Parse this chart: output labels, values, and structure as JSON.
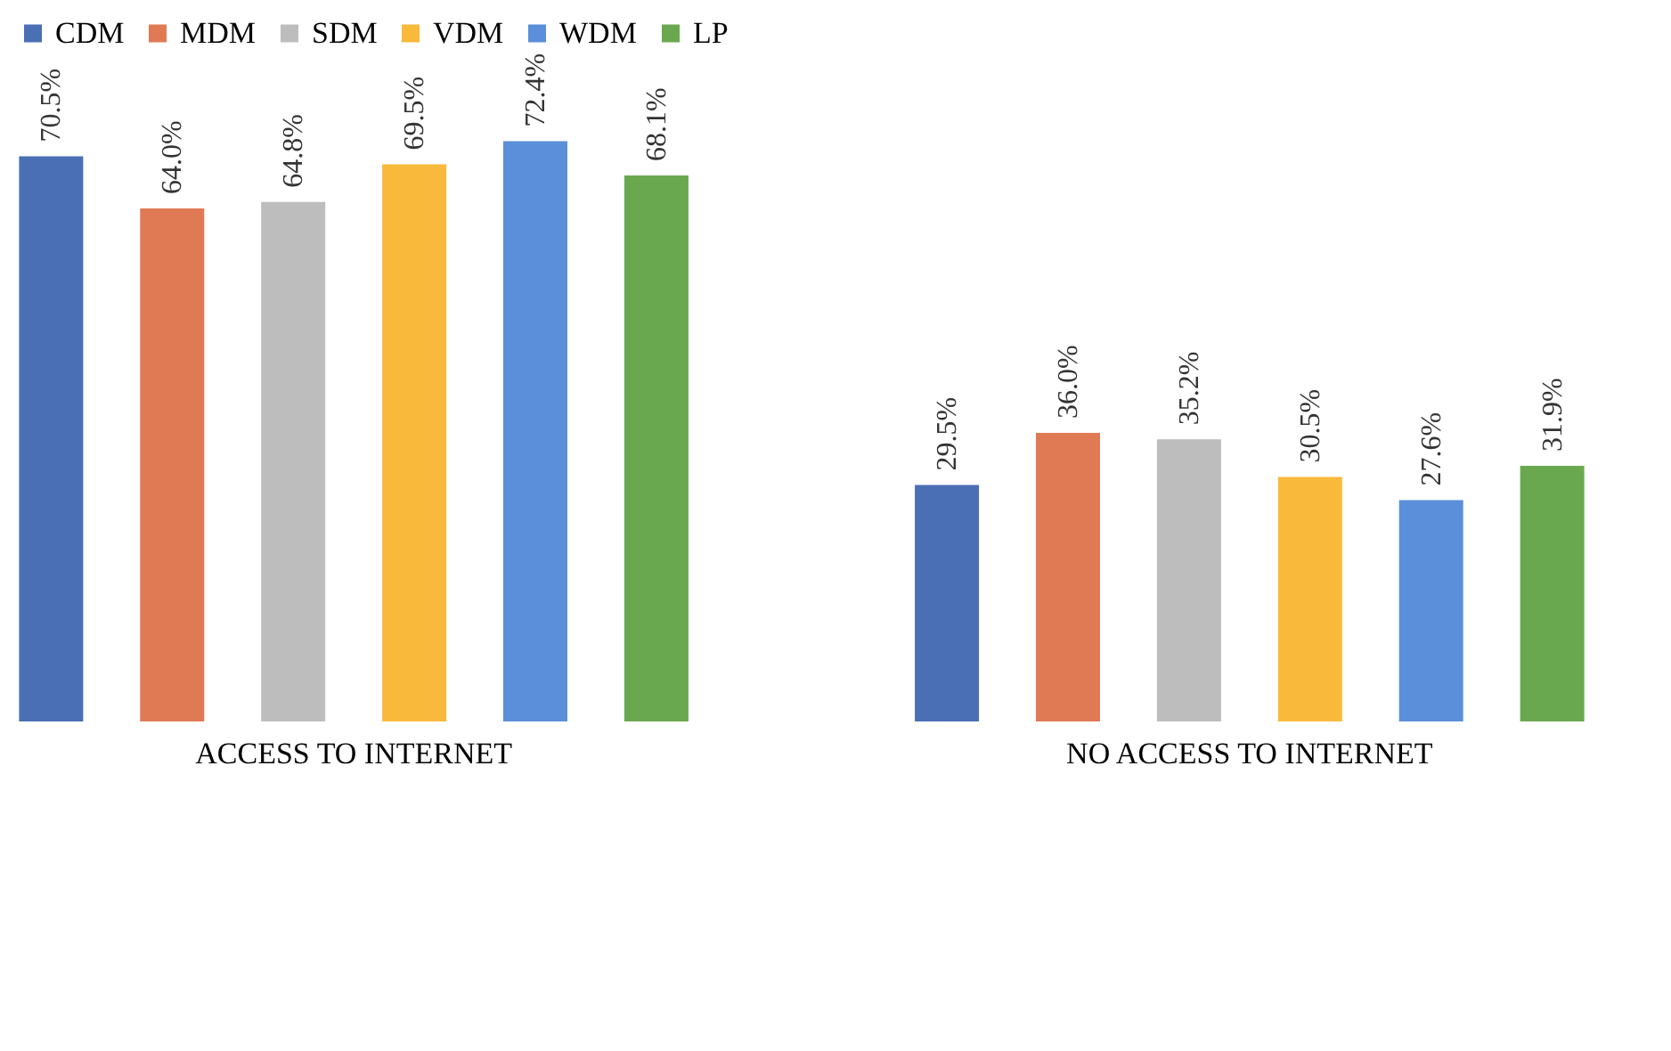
{
  "chart_data": {
    "type": "bar",
    "categories": [
      "ACCESS TO INTERNET",
      "NO ACCESS TO INTERNET"
    ],
    "legend": "top",
    "grid": false,
    "data_labels": true,
    "series": [
      {
        "name": "CDM",
        "color": "#4a6fb5",
        "values": [
          70.5,
          29.5
        ],
        "value_labels": [
          "70.5%",
          "29.5%"
        ]
      },
      {
        "name": "MDM",
        "color": "#e07a55",
        "values": [
          64.0,
          36.0
        ],
        "value_labels": [
          "64.0%",
          "36.0%"
        ]
      },
      {
        "name": "SDM",
        "color": "#bdbdbd",
        "values": [
          64.8,
          35.2
        ],
        "value_labels": [
          "64.8%",
          "35.2%"
        ]
      },
      {
        "name": "VDM",
        "color": "#f9b93b",
        "values": [
          69.5,
          30.5
        ],
        "value_labels": [
          "69.5%",
          "30.5%"
        ]
      },
      {
        "name": "WDM",
        "color": "#5b8fd9",
        "values": [
          72.4,
          27.6
        ],
        "value_labels": [
          "72.4%",
          "27.6%"
        ]
      },
      {
        "name": "LP",
        "color": "#6aa84f",
        "values": [
          68.1,
          31.9
        ],
        "value_labels": [
          "68.1%",
          "31.9%"
        ]
      }
    ]
  }
}
